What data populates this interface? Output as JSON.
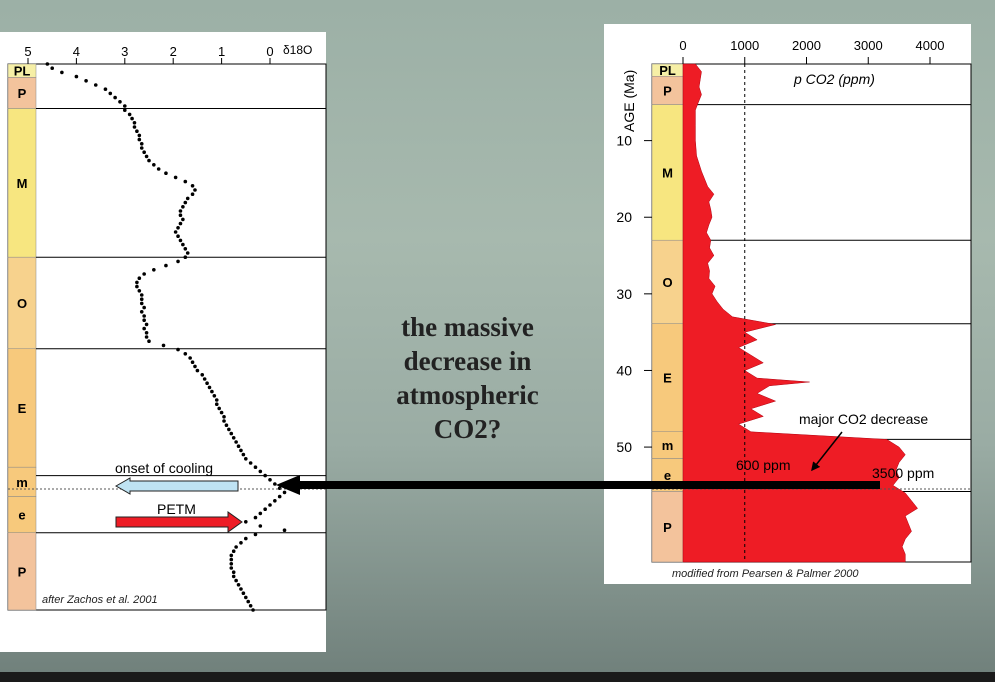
{
  "slide": {
    "caption_lines": [
      "the massive",
      "decrease in",
      "atmospheric",
      "CO2?"
    ],
    "colors": {
      "background": "#a3b5ab",
      "arrow": "#000000",
      "co2_fill": "#ee1c25"
    }
  },
  "chart_data": [
    {
      "type": "scatter",
      "title": "",
      "xlabel": "δ18O",
      "x_ticks": [
        "5",
        "4",
        "3",
        "2",
        "1",
        "0"
      ],
      "xlim": [
        5,
        0
      ],
      "periods": [
        {
          "label": "PL",
          "color": "#f6efa6"
        },
        {
          "label": "P",
          "color": "#f3c39c"
        },
        {
          "label": "M",
          "color": "#f7e680"
        },
        {
          "label": "O",
          "color": "#f7d28d"
        },
        {
          "label": "E",
          "color": "#f7c97c"
        },
        {
          "label": "m",
          "color": "#f7c97c"
        },
        {
          "label": "e",
          "color": "#f7c97c"
        },
        {
          "label": "P",
          "color": "#f3c39c"
        }
      ],
      "age_breaks_ma": [
        0,
        5.3,
        23,
        33.9,
        49,
        55.8,
        65
      ],
      "series": [
        {
          "points": [
            [
              0.0,
              4.6
            ],
            [
              0.5,
              4.5
            ],
            [
              1.0,
              4.3
            ],
            [
              1.5,
              4.0
            ],
            [
              2.0,
              3.8
            ],
            [
              2.5,
              3.6
            ],
            [
              3.0,
              3.4
            ],
            [
              3.5,
              3.3
            ],
            [
              4.0,
              3.2
            ],
            [
              4.5,
              3.1
            ],
            [
              5.0,
              3.0
            ],
            [
              5.5,
              3.0
            ],
            [
              6.0,
              2.9
            ],
            [
              6.5,
              2.85
            ],
            [
              7.0,
              2.8
            ],
            [
              7.5,
              2.8
            ],
            [
              8.0,
              2.75
            ],
            [
              8.5,
              2.7
            ],
            [
              9.0,
              2.7
            ],
            [
              9.5,
              2.65
            ],
            [
              10.0,
              2.65
            ],
            [
              10.5,
              2.6
            ],
            [
              11.0,
              2.55
            ],
            [
              11.5,
              2.5
            ],
            [
              12.0,
              2.4
            ],
            [
              12.5,
              2.3
            ],
            [
              13.0,
              2.15
            ],
            [
              13.5,
              1.95
            ],
            [
              14.0,
              1.75
            ],
            [
              14.5,
              1.6
            ],
            [
              15.0,
              1.55
            ],
            [
              15.5,
              1.6
            ],
            [
              16.0,
              1.7
            ],
            [
              16.5,
              1.75
            ],
            [
              17.0,
              1.8
            ],
            [
              17.5,
              1.85
            ],
            [
              18.0,
              1.85
            ],
            [
              18.5,
              1.8
            ],
            [
              19.0,
              1.85
            ],
            [
              19.5,
              1.9
            ],
            [
              20.0,
              1.95
            ],
            [
              20.5,
              1.9
            ],
            [
              21.0,
              1.85
            ],
            [
              21.5,
              1.8
            ],
            [
              22.0,
              1.75
            ],
            [
              22.5,
              1.7
            ],
            [
              23.0,
              1.75
            ],
            [
              23.5,
              1.9
            ],
            [
              24.0,
              2.15
            ],
            [
              24.5,
              2.4
            ],
            [
              25.0,
              2.6
            ],
            [
              25.5,
              2.7
            ],
            [
              26.0,
              2.75
            ],
            [
              26.5,
              2.75
            ],
            [
              27.0,
              2.7
            ],
            [
              27.5,
              2.65
            ],
            [
              28.0,
              2.65
            ],
            [
              28.5,
              2.65
            ],
            [
              29.0,
              2.6
            ],
            [
              29.5,
              2.65
            ],
            [
              30.0,
              2.6
            ],
            [
              30.5,
              2.6
            ],
            [
              31.0,
              2.55
            ],
            [
              31.5,
              2.6
            ],
            [
              32.0,
              2.55
            ],
            [
              32.5,
              2.55
            ],
            [
              33.0,
              2.5
            ],
            [
              33.5,
              2.2
            ],
            [
              34.0,
              1.9
            ],
            [
              34.5,
              1.75
            ],
            [
              35.0,
              1.65
            ],
            [
              35.5,
              1.6
            ],
            [
              36.0,
              1.55
            ],
            [
              36.5,
              1.5
            ],
            [
              37.0,
              1.4
            ],
            [
              37.5,
              1.35
            ],
            [
              38.0,
              1.3
            ],
            [
              38.5,
              1.25
            ],
            [
              39.0,
              1.2
            ],
            [
              39.5,
              1.15
            ],
            [
              40.0,
              1.1
            ],
            [
              40.5,
              1.1
            ],
            [
              41.0,
              1.05
            ],
            [
              41.5,
              1.0
            ],
            [
              42.0,
              0.95
            ],
            [
              42.5,
              0.95
            ],
            [
              43.0,
              0.9
            ],
            [
              43.5,
              0.85
            ],
            [
              44.0,
              0.8
            ],
            [
              44.5,
              0.75
            ],
            [
              45.0,
              0.7
            ],
            [
              45.5,
              0.65
            ],
            [
              46.0,
              0.6
            ],
            [
              46.5,
              0.55
            ],
            [
              47.0,
              0.5
            ],
            [
              47.5,
              0.4
            ],
            [
              48.0,
              0.3
            ],
            [
              48.5,
              0.2
            ],
            [
              49.0,
              0.1
            ],
            [
              49.5,
              0.0
            ],
            [
              50.0,
              -0.1
            ],
            [
              50.5,
              -0.2
            ],
            [
              51.0,
              -0.3
            ],
            [
              51.5,
              -0.2
            ],
            [
              52.0,
              -0.1
            ],
            [
              52.5,
              0.0
            ],
            [
              53.0,
              0.1
            ],
            [
              53.5,
              0.2
            ],
            [
              54.0,
              0.3
            ],
            [
              54.5,
              0.5
            ],
            [
              55.0,
              0.2
            ],
            [
              55.5,
              -0.3
            ],
            [
              56.0,
              0.3
            ],
            [
              56.5,
              0.5
            ],
            [
              57.0,
              0.6
            ],
            [
              57.5,
              0.7
            ],
            [
              58.0,
              0.75
            ],
            [
              58.5,
              0.8
            ],
            [
              59.0,
              0.8
            ],
            [
              59.5,
              0.8
            ],
            [
              60.0,
              0.8
            ],
            [
              60.5,
              0.75
            ],
            [
              61.0,
              0.75
            ],
            [
              61.5,
              0.7
            ],
            [
              62.0,
              0.65
            ],
            [
              62.5,
              0.6
            ],
            [
              63.0,
              0.55
            ],
            [
              63.5,
              0.5
            ],
            [
              64.0,
              0.45
            ],
            [
              64.5,
              0.4
            ],
            [
              65.0,
              0.35
            ]
          ]
        }
      ],
      "annotations": [
        "onset of cooling",
        "PETM",
        "after Zachos et al. 2001"
      ],
      "colors": {
        "cooling_arrow": "#bfe3f3",
        "petm_arrow": "#ee1c25"
      }
    },
    {
      "type": "area",
      "title": "",
      "xlabel": "p CO2 (ppm)",
      "ylabel": "AGE (Ma)",
      "x_ticks": [
        "0",
        "1000",
        "2000",
        "3000",
        "4000"
      ],
      "xlim": [
        0,
        4000
      ],
      "ylim": [
        0,
        65
      ],
      "y_ticks": [
        "10",
        "20",
        "30",
        "40",
        "50"
      ],
      "reference_line_ppm": 1000,
      "periods": [
        {
          "label": "PL",
          "color": "#f6efa6"
        },
        {
          "label": "P",
          "color": "#f3c39c"
        },
        {
          "label": "M",
          "color": "#f7e680"
        },
        {
          "label": "O",
          "color": "#f7d28d"
        },
        {
          "label": "E",
          "color": "#f7c97c"
        },
        {
          "label": "m",
          "color": "#f7c97c"
        },
        {
          "label": "e",
          "color": "#f7c97c"
        },
        {
          "label": "P",
          "color": "#f3c39c"
        }
      ],
      "age_breaks_ma": [
        0,
        5.3,
        23,
        33.9,
        49,
        55.8,
        65
      ],
      "series": [
        {
          "points": [
            [
              0,
              200
            ],
            [
              1,
              300
            ],
            [
              2,
              280
            ],
            [
              3,
              260
            ],
            [
              4,
              300
            ],
            [
              5,
              250
            ],
            [
              6,
              200
            ],
            [
              8,
              200
            ],
            [
              10,
              200
            ],
            [
              12,
              220
            ],
            [
              14,
              300
            ],
            [
              16,
              400
            ],
            [
              17,
              500
            ],
            [
              18,
              420
            ],
            [
              19,
              450
            ],
            [
              20,
              470
            ],
            [
              21,
              420
            ],
            [
              22,
              380
            ],
            [
              23,
              450
            ],
            [
              24,
              430
            ],
            [
              25,
              500
            ],
            [
              26,
              400
            ],
            [
              27,
              430
            ],
            [
              28,
              420
            ],
            [
              29,
              520
            ],
            [
              30,
              470
            ],
            [
              31,
              550
            ],
            [
              32,
              650
            ],
            [
              33,
              800
            ],
            [
              34,
              1500
            ],
            [
              35,
              1000
            ],
            [
              36,
              1200
            ],
            [
              37,
              900
            ],
            [
              38,
              1100
            ],
            [
              39,
              1300
            ],
            [
              40,
              1000
            ],
            [
              41,
              1200
            ],
            [
              41.5,
              2050
            ],
            [
              42,
              1400
            ],
            [
              43,
              1200
            ],
            [
              44,
              1500
            ],
            [
              45,
              1100
            ],
            [
              46,
              1300
            ],
            [
              47,
              900
            ],
            [
              48,
              1100
            ],
            [
              49,
              3300
            ],
            [
              50,
              3500
            ],
            [
              51,
              3600
            ],
            [
              52,
              3500
            ],
            [
              53,
              3450
            ],
            [
              54,
              3500
            ],
            [
              55,
              3400
            ],
            [
              56,
              3600
            ],
            [
              57,
              3700
            ],
            [
              58,
              3800
            ],
            [
              59,
              3600
            ],
            [
              60,
              3650
            ],
            [
              61,
              3700
            ],
            [
              62,
              3600
            ],
            [
              63,
              3550
            ],
            [
              64,
              3600
            ],
            [
              65,
              3600
            ]
          ]
        }
      ],
      "annotations": [
        "major CO2 decrease",
        "600 ppm",
        "3500 ppm",
        "modified from Pearsen & Palmer 2000"
      ]
    }
  ]
}
